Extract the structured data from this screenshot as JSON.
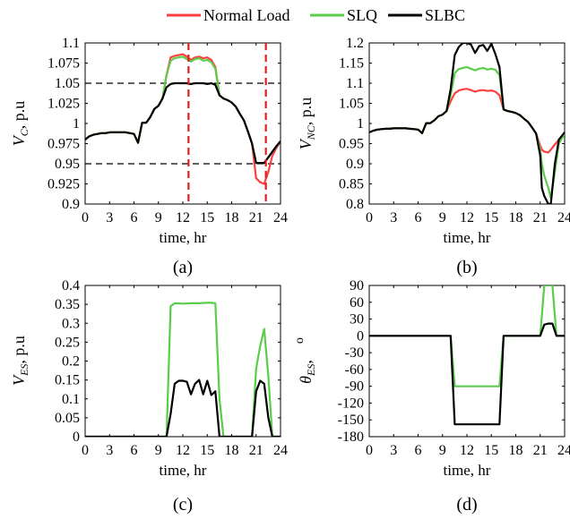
{
  "legend": {
    "entries": [
      {
        "name": "Normal Load",
        "color": "#ff4040"
      },
      {
        "name": "SLQ",
        "color": "#5ccc4c"
      },
      {
        "name": "SLBC",
        "color": "#000000"
      }
    ],
    "placement": "top-center"
  },
  "chart_data": [
    {
      "type": "line",
      "caption": "(a)",
      "ylabel_main": "V",
      "ylabel_sub": "C",
      "ylabel_unit": ", p.u",
      "xlabel": "time, hr",
      "xlim": [
        0,
        24
      ],
      "ylim": [
        0.9,
        1.1
      ],
      "xticks": [
        0,
        3,
        6,
        9,
        12,
        15,
        18,
        21,
        24
      ],
      "yticks": [
        0.9,
        0.925,
        0.95,
        0.975,
        1,
        1.025,
        1.05,
        1.075,
        1.1
      ],
      "ytick_labels": [
        "0.9",
        "0.925",
        "0.95",
        "0.975",
        "1",
        "1.025",
        "1.05",
        "1.075",
        "1.1"
      ],
      "x": [
        0,
        0.5,
        1,
        1.5,
        2,
        2.5,
        3,
        3.5,
        4,
        4.5,
        5,
        5.5,
        6,
        6.5,
        7,
        7.5,
        8,
        8.5,
        9,
        9.5,
        10,
        10.5,
        11,
        11.5,
        12,
        12.5,
        13,
        13.5,
        14,
        14.5,
        15,
        15.5,
        16,
        16.5,
        17,
        17.5,
        18,
        18.5,
        19,
        19.5,
        20,
        20.5,
        21,
        21.5,
        22,
        22.5,
        23,
        23.5,
        24
      ],
      "series": [
        {
          "name": "Normal Load",
          "color": "#ff4040",
          "values": [
            0.98,
            0.984,
            0.986,
            0.987,
            0.988,
            0.988,
            0.989,
            0.989,
            0.989,
            0.989,
            0.989,
            0.988,
            0.987,
            0.976,
            1.001,
            1.001,
            1.008,
            1.018,
            1.022,
            1.031,
            1.06,
            1.082,
            1.084,
            1.085,
            1.086,
            1.083,
            1.079,
            1.082,
            1.083,
            1.081,
            1.082,
            1.079,
            1.07,
            1.035,
            1.031,
            1.029,
            1.026,
            1.021,
            1.012,
            1.004,
            0.99,
            0.975,
            0.932,
            0.927,
            0.925,
            0.94,
            0.96,
            0.97,
            0.978
          ]
        },
        {
          "name": "SLQ",
          "color": "#5ccc4c",
          "values": [
            0.98,
            0.984,
            0.986,
            0.987,
            0.988,
            0.988,
            0.989,
            0.989,
            0.989,
            0.989,
            0.989,
            0.988,
            0.987,
            0.976,
            1.001,
            1.001,
            1.008,
            1.018,
            1.022,
            1.031,
            1.06,
            1.078,
            1.081,
            1.082,
            1.083,
            1.08,
            1.077,
            1.08,
            1.081,
            1.078,
            1.079,
            1.076,
            1.068,
            1.035,
            1.031,
            1.029,
            1.026,
            1.021,
            1.012,
            1.004,
            0.99,
            0.975,
            0.951,
            0.951,
            0.951,
            0.958,
            0.965,
            0.972,
            0.978
          ]
        },
        {
          "name": "SLBC",
          "color": "#000000",
          "values": [
            0.98,
            0.984,
            0.986,
            0.987,
            0.988,
            0.988,
            0.989,
            0.989,
            0.989,
            0.989,
            0.989,
            0.988,
            0.987,
            0.976,
            1.001,
            1.001,
            1.008,
            1.018,
            1.022,
            1.031,
            1.045,
            1.049,
            1.05,
            1.05,
            1.05,
            1.05,
            1.049,
            1.05,
            1.05,
            1.05,
            1.049,
            1.05,
            1.048,
            1.035,
            1.031,
            1.029,
            1.026,
            1.021,
            1.012,
            1.004,
            0.99,
            0.975,
            0.951,
            0.951,
            0.951,
            0.958,
            0.965,
            0.972,
            0.978
          ]
        }
      ],
      "hlines": [
        {
          "y": 1.05,
          "style": "black-dashed"
        },
        {
          "y": 0.95,
          "style": "black-dashed"
        }
      ],
      "vlines": [
        {
          "x": 12.7,
          "style": "red-dashed"
        },
        {
          "x": 22.2,
          "style": "red-dashed"
        }
      ],
      "grid": false
    },
    {
      "type": "line",
      "caption": "(b)",
      "ylabel_main": "V",
      "ylabel_sub": "NC",
      "ylabel_unit": ", p.u",
      "xlabel": "time, hr",
      "xlim": [
        0,
        24
      ],
      "ylim": [
        0.8,
        1.2
      ],
      "xticks": [
        0,
        3,
        6,
        9,
        12,
        15,
        18,
        21,
        24
      ],
      "yticks": [
        0.8,
        0.85,
        0.9,
        0.95,
        1,
        1.05,
        1.1,
        1.15,
        1.2
      ],
      "ytick_labels": [
        "0.8",
        "0.85",
        "0.9",
        "0.95",
        "1",
        "1.05",
        "1.1",
        "1.15",
        "1.2"
      ],
      "x": [
        0,
        0.5,
        1,
        1.5,
        2,
        2.5,
        3,
        3.5,
        4,
        4.5,
        5,
        5.5,
        6,
        6.5,
        7,
        7.5,
        8,
        8.5,
        9,
        9.5,
        10,
        10.5,
        11,
        11.5,
        12,
        12.5,
        13,
        13.5,
        14,
        14.5,
        15,
        15.5,
        16,
        16.5,
        17,
        17.5,
        18,
        18.5,
        19,
        19.5,
        20,
        20.5,
        21,
        21.2,
        21.5,
        22,
        22.3,
        22.8,
        23.3,
        24
      ],
      "series": [
        {
          "name": "Normal Load",
          "color": "#ff4040",
          "values": [
            0.978,
            0.982,
            0.985,
            0.986,
            0.987,
            0.987,
            0.988,
            0.988,
            0.988,
            0.988,
            0.987,
            0.986,
            0.985,
            0.976,
            1.001,
            1.001,
            1.008,
            1.018,
            1.022,
            1.031,
            1.055,
            1.075,
            1.082,
            1.085,
            1.086,
            1.083,
            1.079,
            1.082,
            1.083,
            1.081,
            1.082,
            1.079,
            1.07,
            1.035,
            1.031,
            1.029,
            1.026,
            1.021,
            1.012,
            1.004,
            0.99,
            0.975,
            0.945,
            0.935,
            0.93,
            0.928,
            0.935,
            0.948,
            0.96,
            0.975
          ]
        },
        {
          "name": "SLQ",
          "color": "#5ccc4c",
          "values": [
            0.978,
            0.982,
            0.985,
            0.986,
            0.987,
            0.987,
            0.988,
            0.988,
            0.988,
            0.988,
            0.987,
            0.986,
            0.985,
            0.976,
            1.001,
            1.001,
            1.008,
            1.018,
            1.022,
            1.031,
            1.07,
            1.125,
            1.135,
            1.138,
            1.14,
            1.136,
            1.132,
            1.136,
            1.138,
            1.134,
            1.136,
            1.133,
            1.12,
            1.035,
            1.031,
            1.029,
            1.026,
            1.021,
            1.012,
            1.004,
            0.99,
            0.975,
            0.935,
            0.9,
            0.87,
            0.84,
            0.815,
            0.88,
            0.95,
            0.975
          ]
        },
        {
          "name": "SLBC",
          "color": "#000000",
          "values": [
            0.978,
            0.982,
            0.985,
            0.986,
            0.987,
            0.987,
            0.988,
            0.988,
            0.988,
            0.988,
            0.987,
            0.986,
            0.985,
            0.976,
            1.001,
            1.001,
            1.008,
            1.018,
            1.022,
            1.031,
            1.085,
            1.17,
            1.19,
            1.2,
            1.2,
            1.196,
            1.175,
            1.192,
            1.195,
            1.18,
            1.198,
            1.172,
            1.14,
            1.035,
            1.031,
            1.029,
            1.026,
            1.021,
            1.012,
            1.004,
            0.99,
            0.975,
            0.92,
            0.84,
            0.82,
            0.8,
            0.8,
            0.9,
            0.96,
            0.978
          ]
        }
      ],
      "grid": false
    },
    {
      "type": "line",
      "caption": "(c)",
      "ylabel_main": "V",
      "ylabel_sub": "ES",
      "ylabel_unit": ", p.u",
      "xlabel": "time, hr",
      "xlim": [
        0,
        24
      ],
      "ylim": [
        0,
        0.4
      ],
      "xticks": [
        0,
        3,
        6,
        9,
        12,
        15,
        18,
        21,
        24
      ],
      "yticks": [
        0,
        0.05,
        0.1,
        0.15,
        0.2,
        0.25,
        0.3,
        0.35,
        0.4
      ],
      "ytick_labels": [
        "0",
        "0.05",
        "0.1",
        "0.15",
        "0.2",
        "0.25",
        "0.3",
        "0.35",
        "0.4"
      ],
      "series": [
        {
          "name": "SLQ",
          "color": "#5ccc4c",
          "x": [
            0,
            10,
            10.5,
            11,
            12,
            13,
            14,
            15,
            15.5,
            16,
            16.5,
            17,
            20.5,
            21,
            21.5,
            22,
            22.5,
            23,
            24
          ],
          "values": [
            0,
            0,
            0.345,
            0.353,
            0.352,
            0.353,
            0.353,
            0.354,
            0.354,
            0.353,
            0.1,
            0,
            0,
            0.18,
            0.24,
            0.285,
            0.16,
            0,
            0
          ]
        },
        {
          "name": "SLBC",
          "color": "#000000",
          "x": [
            0,
            10,
            10.5,
            11,
            11.5,
            12,
            12.5,
            13,
            13.5,
            14,
            14.5,
            15,
            15.5,
            16,
            16.5,
            17,
            20.5,
            21,
            21.5,
            22,
            22.5,
            23,
            24
          ],
          "values": [
            0,
            0,
            0.06,
            0.14,
            0.148,
            0.148,
            0.145,
            0.112,
            0.14,
            0.15,
            0.112,
            0.148,
            0.11,
            0.12,
            0,
            0,
            0,
            0.12,
            0.148,
            0.14,
            0.05,
            0,
            0
          ]
        }
      ],
      "grid": false
    },
    {
      "type": "line",
      "caption": "(d)",
      "ylabel_main": "θ",
      "ylabel_sub": "ES",
      "ylabel_unit": ",",
      "ylabel_degree": "o",
      "xlabel": "time, hr",
      "xlim": [
        0,
        24
      ],
      "ylim": [
        -180,
        90
      ],
      "xticks": [
        0,
        3,
        6,
        9,
        12,
        15,
        18,
        21,
        24
      ],
      "yticks": [
        -180,
        -150,
        -120,
        -90,
        -60,
        -30,
        0,
        30,
        60,
        90
      ],
      "ytick_labels": [
        "-180",
        "-150",
        "-120",
        "-90",
        "-60",
        "-30",
        "0",
        "30",
        "60",
        "90"
      ],
      "series": [
        {
          "name": "SLQ",
          "color": "#5ccc4c",
          "x": [
            0,
            10,
            10.5,
            16,
            16.5,
            17,
            21,
            21.5,
            22.5,
            23,
            24
          ],
          "values": [
            0,
            0,
            -90,
            -90,
            0,
            0,
            0,
            90,
            90,
            0,
            0
          ]
        },
        {
          "name": "SLBC",
          "color": "#000000",
          "x": [
            0,
            10,
            10.5,
            16,
            16.5,
            17,
            21,
            21.5,
            22,
            22.5,
            23,
            24
          ],
          "values": [
            0,
            0,
            -158,
            -158,
            0,
            0,
            0,
            20,
            22,
            22,
            0,
            0
          ]
        }
      ],
      "grid": false
    }
  ]
}
